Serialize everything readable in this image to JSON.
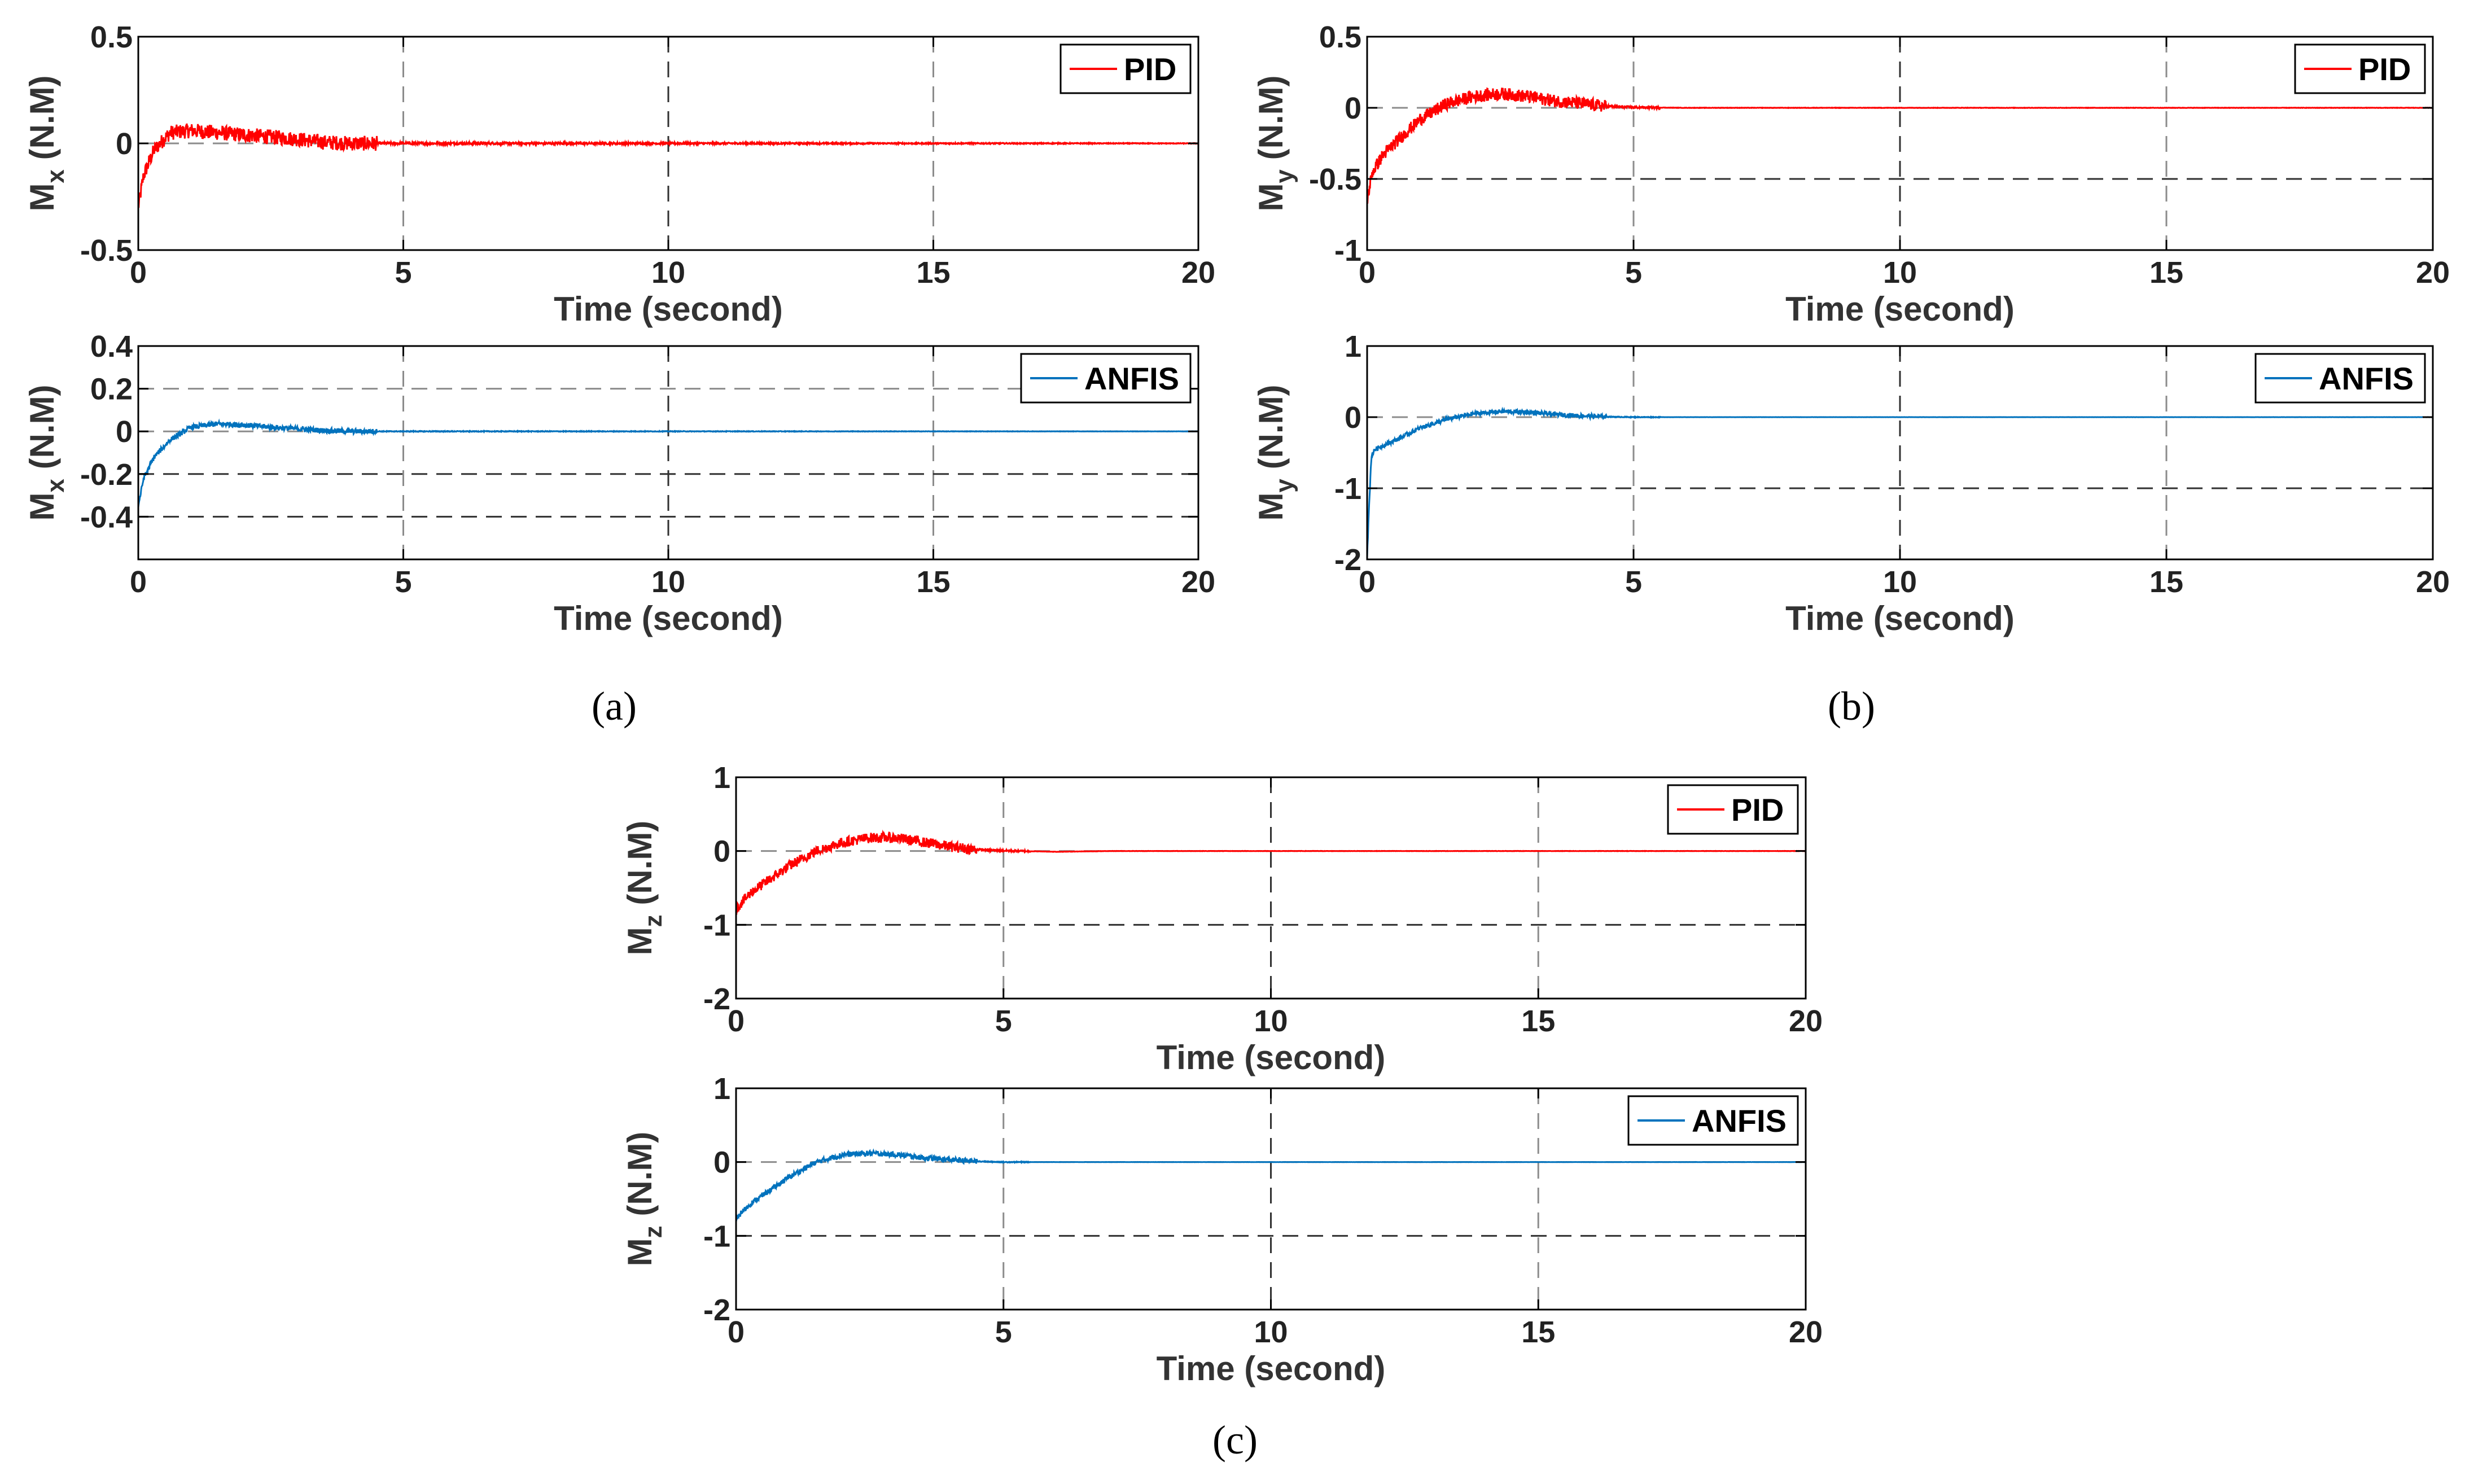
{
  "captions": [
    "(a)",
    "(b)",
    "(c)"
  ],
  "chart_data": [
    {
      "type": "line",
      "panel": "(a)",
      "xlabel": "Time (second)",
      "ylabel": "M",
      "ylabel_sub": "x",
      "ylabel_unit": "(N.M)",
      "xlim": [
        0,
        20
      ],
      "ylim": [
        -0.5,
        0.5
      ],
      "xticks": [
        0,
        5,
        10,
        15,
        20
      ],
      "yticks": [
        -0.5,
        0,
        0.5
      ],
      "ytick_labels": [
        "-0.5",
        "0",
        "0.5"
      ],
      "grid": true,
      "legend": "top-right",
      "series": [
        {
          "name": "PID",
          "color": "#ff0000",
          "noise": 0.035,
          "x": [
            0,
            0.1,
            0.3,
            0.6,
            1.0,
            1.5,
            2.0,
            2.5,
            3.0,
            3.5,
            4,
            6,
            20
          ],
          "y": [
            -0.3,
            -0.15,
            -0.03,
            0.05,
            0.06,
            0.05,
            0.04,
            0.03,
            0.02,
            0.005,
            0,
            0,
            0
          ]
        }
      ]
    },
    {
      "type": "line",
      "panel": "(a)",
      "xlabel": "Time (second)",
      "ylabel": "M",
      "ylabel_sub": "x",
      "ylabel_unit": "(N.M)",
      "xlim": [
        0,
        20
      ],
      "ylim": [
        -0.6,
        0.4
      ],
      "xticks": [
        0,
        5,
        10,
        15,
        20
      ],
      "yticks": [
        -0.4,
        -0.2,
        0,
        0.2,
        0.4
      ],
      "ytick_labels": [
        "-0.4",
        "-0.2",
        "0",
        "0.2",
        "0.4"
      ],
      "grid": true,
      "legend": "top-right",
      "series": [
        {
          "name": "ANFIS",
          "color": "#0072bd",
          "noise": 0.012,
          "x": [
            0,
            0.1,
            0.3,
            0.6,
            1.0,
            1.5,
            2.0,
            2.5,
            3.0,
            3.5,
            4,
            20
          ],
          "y": [
            -0.35,
            -0.22,
            -0.12,
            -0.04,
            0.02,
            0.035,
            0.03,
            0.02,
            0.012,
            0.004,
            0,
            0
          ]
        }
      ]
    },
    {
      "type": "line",
      "panel": "(b)",
      "xlabel": "Time (second)",
      "ylabel": "M",
      "ylabel_sub": "y",
      "ylabel_unit": "(N.M)",
      "xlim": [
        0,
        20
      ],
      "ylim": [
        -1,
        0.5
      ],
      "xticks": [
        0,
        5,
        10,
        15,
        20
      ],
      "yticks": [
        -1,
        -0.5,
        0,
        0.5
      ],
      "ytick_labels": [
        "-1",
        "-0.5",
        "0",
        "0.5"
      ],
      "grid": true,
      "legend": "top-right",
      "series": [
        {
          "name": "PID",
          "color": "#ff0000",
          "noise": 0.045,
          "x": [
            0,
            0.1,
            0.3,
            0.6,
            1.0,
            1.5,
            2.0,
            2.5,
            3.0,
            3.5,
            4.0,
            4.5,
            5.0,
            6.0,
            20
          ],
          "y": [
            -0.65,
            -0.45,
            -0.33,
            -0.22,
            -0.08,
            0.03,
            0.08,
            0.1,
            0.08,
            0.05,
            0.03,
            0.01,
            0.003,
            0,
            0
          ]
        }
      ]
    },
    {
      "type": "line",
      "panel": "(b)",
      "xlabel": "Time (second)",
      "ylabel": "M",
      "ylabel_sub": "y",
      "ylabel_unit": "(N.M)",
      "xlim": [
        0,
        20
      ],
      "ylim": [
        -2,
        1
      ],
      "xticks": [
        0,
        5,
        10,
        15,
        20
      ],
      "yticks": [
        -2,
        -1,
        0,
        1
      ],
      "ytick_labels": [
        "-2",
        "-1",
        "0",
        "1"
      ],
      "grid": true,
      "legend": "top-right",
      "series": [
        {
          "name": "ANFIS",
          "color": "#0072bd",
          "noise": 0.03,
          "x": [
            0,
            0.04,
            0.08,
            0.15,
            0.3,
            0.6,
            1.0,
            1.5,
            2.0,
            2.5,
            3.0,
            3.5,
            4.0,
            4.5,
            5.0,
            20
          ],
          "y": [
            -1.95,
            -1.2,
            -0.55,
            -0.45,
            -0.4,
            -0.3,
            -0.15,
            -0.03,
            0.05,
            0.08,
            0.07,
            0.04,
            0.02,
            0.005,
            0,
            0
          ]
        }
      ]
    },
    {
      "type": "line",
      "panel": "(c)",
      "xlabel": "Time (second)",
      "ylabel": "M",
      "ylabel_sub": "z",
      "ylabel_unit": "(N.M)",
      "xlim": [
        0,
        20
      ],
      "ylim": [
        -2,
        1
      ],
      "xticks": [
        0,
        5,
        10,
        15,
        20
      ],
      "yticks": [
        -2,
        -1,
        0,
        1
      ],
      "ytick_labels": [
        "-2",
        "-1",
        "0",
        "1"
      ],
      "grid": true,
      "legend": "top-right",
      "series": [
        {
          "name": "PID",
          "color": "#ff0000",
          "noise": 0.07,
          "x": [
            0,
            0.1,
            0.3,
            0.6,
            1.0,
            1.5,
            2.0,
            2.5,
            3.0,
            3.5,
            4.0,
            4.5,
            5.0,
            6.0,
            7.0,
            20
          ],
          "y": [
            -0.8,
            -0.7,
            -0.55,
            -0.4,
            -0.2,
            0.0,
            0.12,
            0.18,
            0.18,
            0.12,
            0.06,
            0.02,
            0.005,
            -0.01,
            0,
            0
          ]
        }
      ]
    },
    {
      "type": "line",
      "panel": "(c)",
      "xlabel": "Time (second)",
      "ylabel": "M",
      "ylabel_sub": "z",
      "ylabel_unit": "(N.M)",
      "xlim": [
        0,
        20
      ],
      "ylim": [
        -2,
        1
      ],
      "xticks": [
        0,
        5,
        10,
        15,
        20
      ],
      "yticks": [
        -2,
        -1,
        0,
        1
      ],
      "ytick_labels": [
        "-2",
        "-1",
        "0",
        "1"
      ],
      "grid": true,
      "legend": "top-right",
      "series": [
        {
          "name": "ANFIS",
          "color": "#0072bd",
          "noise": 0.035,
          "x": [
            0,
            0.1,
            0.3,
            0.6,
            1.0,
            1.5,
            2.0,
            2.5,
            3.0,
            3.5,
            4.0,
            4.5,
            5.0,
            20
          ],
          "y": [
            -0.8,
            -0.68,
            -0.55,
            -0.4,
            -0.2,
            0.0,
            0.1,
            0.12,
            0.1,
            0.06,
            0.03,
            0.01,
            0,
            0
          ]
        }
      ]
    }
  ]
}
